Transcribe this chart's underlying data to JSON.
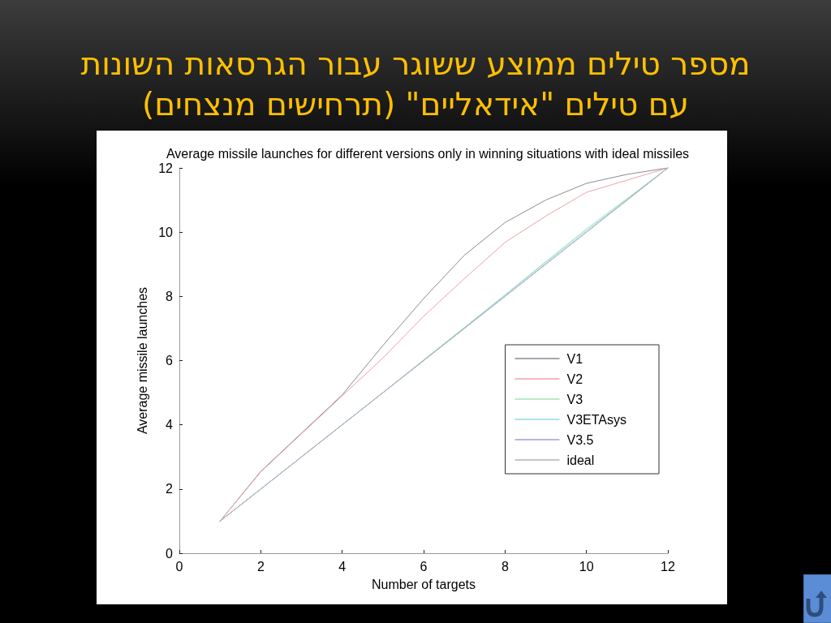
{
  "chart_data": {
    "type": "line",
    "title": "מספר טילים ממוצע ששוגר עבור הגרסאות השונות\nעם טילים \"אידאליים\" (תרחישים מנצחים)",
    "subtitle": "Average missile launches for different versions only in winning situations with ideal missiles",
    "xlabel": "Number of targets",
    "ylabel": "Average missile launches",
    "x": [
      1,
      2,
      3,
      4,
      5,
      6,
      7,
      8,
      9,
      10,
      11,
      12
    ],
    "series": [
      {
        "name": "V1",
        "color": "#8a8a96",
        "values": [
          1,
          2.55,
          3.74,
          4.93,
          6.47,
          7.93,
          9.28,
          10.3,
          11.0,
          11.52,
          11.8,
          12
        ]
      },
      {
        "name": "V2",
        "color": "#f0a0a8",
        "values": [
          1,
          2.53,
          3.72,
          4.9,
          6.08,
          7.38,
          8.55,
          9.68,
          10.5,
          11.24,
          11.62,
          12
        ]
      },
      {
        "name": "V3",
        "color": "#9ee6b0",
        "values": [
          1,
          2,
          3,
          4,
          5,
          6.02,
          7.03,
          8.05,
          9.08,
          10.1,
          11.05,
          12
        ]
      },
      {
        "name": "V3ETAsys",
        "color": "#90d8ec",
        "values": [
          1,
          2,
          3,
          4,
          5,
          6,
          7.02,
          8.04,
          9.05,
          10.05,
          11.02,
          12
        ]
      },
      {
        "name": "V3.5",
        "color": "#a49cd8",
        "values": [
          1,
          2,
          3,
          4,
          5,
          6,
          7,
          8,
          9,
          10,
          11,
          12
        ]
      },
      {
        "name": "ideal",
        "color": "#b4b4b4",
        "values": [
          1,
          2,
          3,
          4,
          5,
          6,
          7,
          8,
          9,
          10,
          11,
          12
        ]
      }
    ],
    "xlim": [
      0,
      12
    ],
    "ylim": [
      0,
      12
    ],
    "xticks": [
      0,
      2,
      4,
      6,
      8,
      10,
      12
    ],
    "yticks": [
      0,
      2,
      4,
      6,
      8,
      10,
      12
    ],
    "grid": false,
    "legend": "right",
    "marker": "none",
    "line_style": "solid"
  }
}
